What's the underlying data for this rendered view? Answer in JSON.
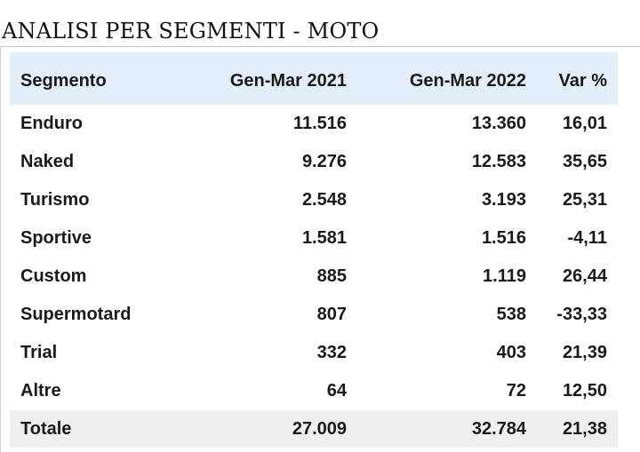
{
  "title": "ANALISI PER SEGMENTI - MOTO",
  "table": {
    "headers": {
      "segment": "Segmento",
      "period1": "Gen-Mar 2021",
      "period2": "Gen-Mar 2022",
      "var": "Var %"
    },
    "rows": [
      {
        "segment": "Enduro",
        "period1": "11.516",
        "period2": "13.360",
        "var": "16,01"
      },
      {
        "segment": "Naked",
        "period1": "9.276",
        "period2": "12.583",
        "var": "35,65"
      },
      {
        "segment": "Turismo",
        "period1": "2.548",
        "period2": "3.193",
        "var": "25,31"
      },
      {
        "segment": "Sportive",
        "period1": "1.581",
        "period2": "1.516",
        "var": "-4,11"
      },
      {
        "segment": "Custom",
        "period1": "885",
        "period2": "1.119",
        "var": "26,44"
      },
      {
        "segment": "Supermotard",
        "period1": "807",
        "period2": "538",
        "var": "-33,33"
      },
      {
        "segment": "Trial",
        "period1": "332",
        "period2": "403",
        "var": "21,39"
      },
      {
        "segment": "Altre",
        "period1": "64",
        "period2": "72",
        "var": "12,50"
      }
    ],
    "total": {
      "segment": "Totale",
      "period1": "27.009",
      "period2": "32.784",
      "var": "21,38"
    }
  },
  "colors": {
    "header_bg": "#e4eef9",
    "total_bg": "#efefef",
    "text": "#1a1a1a"
  }
}
